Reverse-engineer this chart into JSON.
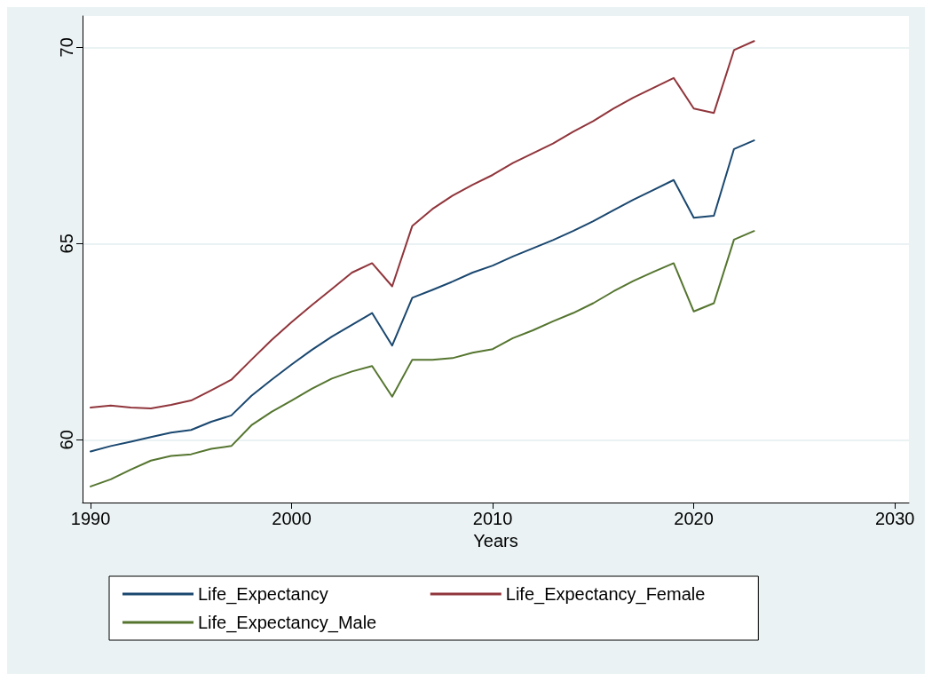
{
  "chart_data": {
    "type": "line",
    "xlabel": "Years",
    "x": [
      1990,
      1991,
      1992,
      1993,
      1994,
      1995,
      1996,
      1997,
      1998,
      1999,
      2000,
      2001,
      2002,
      2003,
      2004,
      2005,
      2006,
      2007,
      2008,
      2009,
      2010,
      2011,
      2012,
      2013,
      2014,
      2015,
      2016,
      2017,
      2018,
      2019,
      2020,
      2021,
      2022,
      2023
    ],
    "series": [
      {
        "name": "Life_Expectancy",
        "color": "#1a476f",
        "values": [
          59.7,
          59.84,
          59.95,
          60.07,
          60.18,
          60.25,
          60.46,
          60.62,
          61.12,
          61.53,
          61.92,
          62.29,
          62.63,
          62.93,
          63.23,
          62.4,
          63.62,
          63.82,
          64.03,
          64.26,
          64.44,
          64.67,
          64.88,
          65.09,
          65.32,
          65.57,
          65.85,
          66.12,
          66.37,
          66.62,
          65.66,
          65.71,
          67.41,
          67.63
        ]
      },
      {
        "name": "Life_Expectancy_Female",
        "color": "#90353b",
        "values": [
          60.82,
          60.87,
          60.82,
          60.8,
          60.89,
          61.0,
          61.26,
          61.53,
          62.04,
          62.54,
          63.0,
          63.43,
          63.84,
          64.26,
          64.5,
          63.91,
          65.45,
          65.88,
          66.22,
          66.5,
          66.75,
          67.05,
          67.3,
          67.55,
          67.85,
          68.12,
          68.44,
          68.72,
          68.97,
          69.22,
          68.44,
          68.33,
          69.93,
          70.16
        ]
      },
      {
        "name": "Life_Expectancy_Male",
        "color": "#55752f",
        "values": [
          58.81,
          58.99,
          59.24,
          59.47,
          59.59,
          59.63,
          59.77,
          59.84,
          60.37,
          60.71,
          61.0,
          61.3,
          61.56,
          61.74,
          61.88,
          61.1,
          62.04,
          62.04,
          62.08,
          62.22,
          62.31,
          62.59,
          62.79,
          63.02,
          63.23,
          63.48,
          63.78,
          64.05,
          64.28,
          64.5,
          63.27,
          63.48,
          65.1,
          65.32
        ]
      }
    ],
    "xlim": [
      1989.6,
      2030.7
    ],
    "xticks": [
      1990,
      2000,
      2010,
      2020,
      2030
    ],
    "ylim": [
      58.4,
      70.8
    ],
    "yticks": [
      60,
      65,
      70
    ],
    "grid": "y",
    "legend": "bottom",
    "marker": "none",
    "line_style": "solid"
  }
}
